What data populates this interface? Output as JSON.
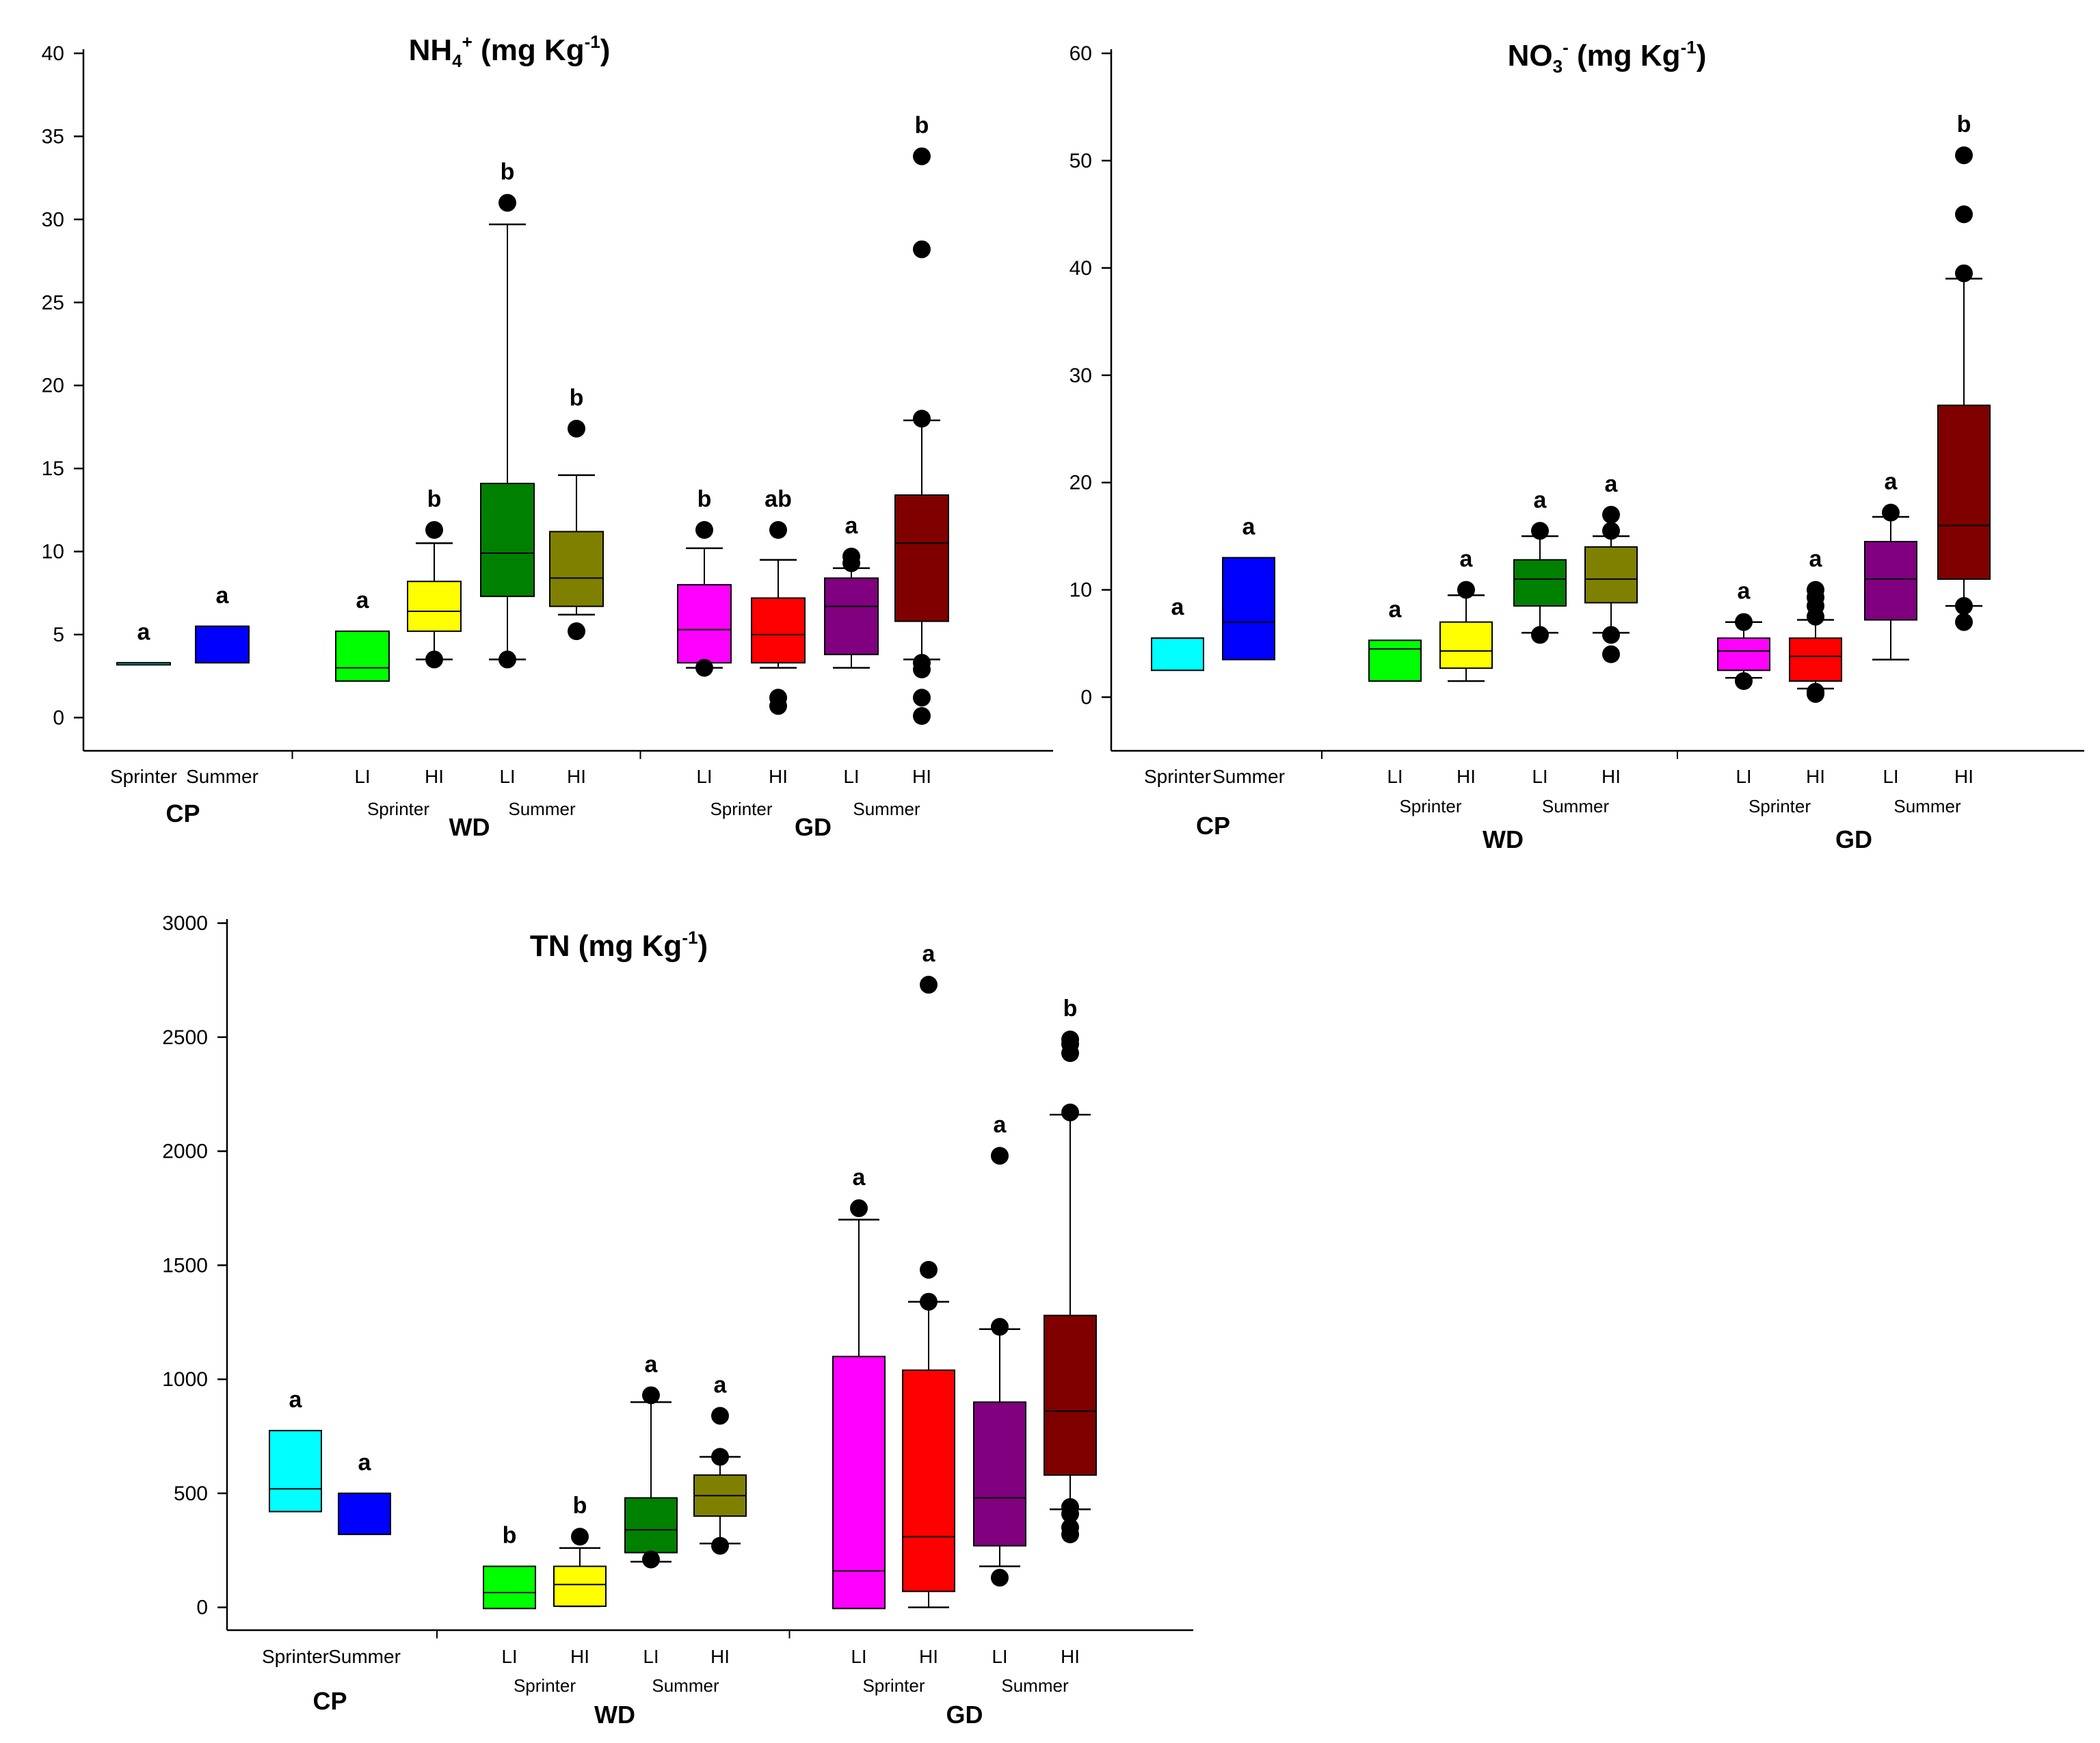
{
  "chart_data": [
    {
      "type": "box",
      "title": "NH4+ (mg Kg-1)",
      "title_parts": {
        "main": "NH",
        "sub": "4",
        "sup": "+",
        "rest": " (mg Kg",
        "unit_sup": "-1",
        "end": ")"
      },
      "ylim": [
        -2,
        40
      ],
      "yticks": [
        "0",
        "5",
        "10",
        "15",
        "20",
        "25",
        "30",
        "35",
        "40"
      ],
      "tick_values": [
        0,
        5,
        10,
        15,
        20,
        25,
        30,
        35,
        40
      ],
      "categories": [
        "Sprinter",
        "Summer",
        "LI",
        "HI",
        "LI",
        "HI",
        "LI",
        "HI",
        "LI",
        "HI"
      ],
      "season_labels": [
        {
          "text": "Sprinter",
          "after": 3
        },
        {
          "text": "Summer",
          "after": 5
        },
        {
          "text": "Sprinter",
          "after": 7
        },
        {
          "text": "Summer",
          "after": 9
        }
      ],
      "groups": [
        {
          "name": "CP",
          "from": 0,
          "to": 1
        },
        {
          "name": "WD",
          "from": 2,
          "to": 5
        },
        {
          "name": "GD",
          "from": 6,
          "to": 9
        }
      ],
      "boxes": [
        {
          "color": "#00ffff",
          "q1": 3.2,
          "median": 3.3,
          "q3": 3.3,
          "whisker_low": null,
          "whisker_high": null,
          "outliers": [],
          "sig": "a"
        },
        {
          "color": "#0000ff",
          "q1": 3.3,
          "median": 5.5,
          "q3": 5.5,
          "whisker_low": null,
          "whisker_high": null,
          "outliers": [],
          "sig": "a"
        },
        {
          "color": "#00ff00",
          "q1": 2.2,
          "median": 3.0,
          "q3": 5.2,
          "whisker_low": null,
          "whisker_high": null,
          "outliers": [],
          "sig": "a"
        },
        {
          "color": "#ffff00",
          "q1": 5.2,
          "median": 6.4,
          "q3": 8.2,
          "whisker_low": 3.5,
          "whisker_high": 10.5,
          "outliers": [
            3.5,
            11.3
          ],
          "sig": "b"
        },
        {
          "color": "#008000",
          "q1": 7.3,
          "median": 9.9,
          "q3": 14.1,
          "whisker_low": 3.5,
          "whisker_high": 29.7,
          "outliers": [
            3.5,
            31.0
          ],
          "sig": "b"
        },
        {
          "color": "#808000",
          "q1": 6.7,
          "median": 8.4,
          "q3": 11.2,
          "whisker_low": 6.2,
          "whisker_high": 14.6,
          "outliers": [
            5.2,
            17.4
          ],
          "sig": "b"
        },
        {
          "color": "#ff00ff",
          "q1": 3.3,
          "median": 5.3,
          "q3": 8.0,
          "whisker_low": 3.0,
          "whisker_high": 10.2,
          "outliers": [
            3.0,
            11.3
          ],
          "sig": "b"
        },
        {
          "color": "#ff0000",
          "q1": 3.3,
          "median": 5.0,
          "q3": 7.2,
          "whisker_low": 3.0,
          "whisker_high": 9.5,
          "outliers": [
            0.7,
            1.2,
            11.3
          ],
          "sig": "ab"
        },
        {
          "color": "#800080",
          "q1": 3.8,
          "median": 6.7,
          "q3": 8.4,
          "whisker_low": 3.0,
          "whisker_high": 9.0,
          "outliers": [
            9.3,
            9.7
          ],
          "sig": "a"
        },
        {
          "color": "#800000",
          "q1": 5.8,
          "median": 10.5,
          "q3": 13.4,
          "whisker_low": 3.5,
          "whisker_high": 17.9,
          "outliers": [
            0.1,
            1.2,
            2.9,
            3.3,
            18.0,
            28.2,
            33.8
          ],
          "sig": "b"
        }
      ]
    },
    {
      "type": "box",
      "title": "NO3- (mg Kg-1)",
      "title_parts": {
        "main": "NO",
        "sub": "3",
        "sup": "-",
        "rest": " (mg Kg",
        "unit_sup": "-1",
        "end": ")"
      },
      "ylim": [
        -5,
        60
      ],
      "yticks": [
        "0",
        "10",
        "20",
        "30",
        "40",
        "50",
        "60"
      ],
      "tick_values": [
        0,
        10,
        20,
        30,
        40,
        50,
        60
      ],
      "categories": [
        "Sprinter",
        "Summer",
        "LI",
        "HI",
        "LI",
        "HI",
        "LI",
        "HI",
        "LI",
        "HI"
      ],
      "season_labels": [
        {
          "text": "Sprinter",
          "after": 3
        },
        {
          "text": "Summer",
          "after": 5
        },
        {
          "text": "Sprinter",
          "after": 7
        },
        {
          "text": "Summer",
          "after": 9
        }
      ],
      "groups": [
        {
          "name": "CP",
          "from": 0,
          "to": 1
        },
        {
          "name": "WD",
          "from": 2,
          "to": 5
        },
        {
          "name": "GD",
          "from": 6,
          "to": 9
        }
      ],
      "boxes": [
        {
          "color": "#00ffff",
          "q1": 2.5,
          "median": 5.5,
          "q3": 5.5,
          "whisker_low": null,
          "whisker_high": null,
          "outliers": [],
          "sig": "a"
        },
        {
          "color": "#0000ff",
          "q1": 3.5,
          "median": 7.0,
          "q3": 13.0,
          "whisker_low": null,
          "whisker_high": null,
          "outliers": [],
          "sig": "a"
        },
        {
          "color": "#00ff00",
          "q1": 1.5,
          "median": 4.5,
          "q3": 5.3,
          "whisker_low": null,
          "whisker_high": null,
          "outliers": [],
          "sig": "a"
        },
        {
          "color": "#ffff00",
          "q1": 2.7,
          "median": 4.3,
          "q3": 7.0,
          "whisker_low": 1.5,
          "whisker_high": 9.5,
          "outliers": [
            10.0
          ],
          "sig": "a"
        },
        {
          "color": "#008000",
          "q1": 8.5,
          "median": 11.0,
          "q3": 12.8,
          "whisker_low": 6.0,
          "whisker_high": 15.0,
          "outliers": [
            5.8,
            15.5
          ],
          "sig": "a"
        },
        {
          "color": "#808000",
          "q1": 8.8,
          "median": 11.0,
          "q3": 14.0,
          "whisker_low": 6.0,
          "whisker_high": 15.0,
          "outliers": [
            4.0,
            5.8,
            15.5,
            17.0
          ],
          "sig": "a"
        },
        {
          "color": "#ff00ff",
          "q1": 2.5,
          "median": 4.3,
          "q3": 5.5,
          "whisker_low": 1.8,
          "whisker_high": 7.0,
          "outliers": [
            1.5,
            7.0
          ],
          "sig": "a"
        },
        {
          "color": "#ff0000",
          "q1": 1.5,
          "median": 3.8,
          "q3": 5.5,
          "whisker_low": 0.8,
          "whisker_high": 7.2,
          "outliers": [
            0.3,
            0.5,
            7.5,
            8.5,
            9.3,
            10.0
          ],
          "sig": "a"
        },
        {
          "color": "#800080",
          "q1": 7.2,
          "median": 11.0,
          "q3": 14.5,
          "whisker_low": 3.5,
          "whisker_high": 16.8,
          "outliers": [
            17.2
          ],
          "sig": "a"
        },
        {
          "color": "#800000",
          "q1": 11.0,
          "median": 16.0,
          "q3": 27.2,
          "whisker_low": 8.5,
          "whisker_high": 39.0,
          "outliers": [
            7.0,
            8.5,
            39.5,
            45.0,
            50.5
          ],
          "sig": "b"
        }
      ]
    },
    {
      "type": "box",
      "title": "TN (mg Kg-1)",
      "title_parts": {
        "main": "TN",
        "sub": "",
        "sup": "",
        "rest": "  (mg Kg",
        "unit_sup": "-1",
        "end": ")"
      },
      "ylim": [
        -100,
        3000
      ],
      "yticks": [
        "0",
        "500",
        "1000",
        "1500",
        "2000",
        "2500",
        "3000"
      ],
      "tick_values": [
        0,
        500,
        1000,
        1500,
        2000,
        2500,
        3000
      ],
      "categories": [
        "Sprinter",
        "Summer",
        "LI",
        "HI",
        "LI",
        "HI",
        "LI",
        "HI",
        "LI",
        "HI"
      ],
      "season_labels": [
        {
          "text": "Sprinter",
          "after": 3
        },
        {
          "text": "Summer",
          "after": 5
        },
        {
          "text": "Sprinter",
          "after": 7
        },
        {
          "text": "Summer",
          "after": 9
        }
      ],
      "groups": [
        {
          "name": "CP",
          "from": 0,
          "to": 1
        },
        {
          "name": "WD",
          "from": 2,
          "to": 5
        },
        {
          "name": "GD",
          "from": 6,
          "to": 9
        }
      ],
      "boxes": [
        {
          "color": "#00ffff",
          "q1": 420,
          "median": 520,
          "q3": 775,
          "whisker_low": null,
          "whisker_high": null,
          "outliers": [],
          "sig": "a"
        },
        {
          "color": "#0000ff",
          "q1": 320,
          "median": 500,
          "q3": 500,
          "whisker_low": null,
          "whisker_high": null,
          "outliers": [],
          "sig": "a"
        },
        {
          "color": "#00ff00",
          "q1": -5,
          "median": 65,
          "q3": 180,
          "whisker_low": null,
          "whisker_high": null,
          "outliers": [],
          "sig": "b"
        },
        {
          "color": "#ffff00",
          "q1": 5,
          "median": 100,
          "q3": 180,
          "whisker_low": 5,
          "whisker_high": 260,
          "outliers": [
            310
          ],
          "sig": "b"
        },
        {
          "color": "#008000",
          "q1": 240,
          "median": 340,
          "q3": 480,
          "whisker_low": 200,
          "whisker_high": 900,
          "outliers": [
            210,
            930
          ],
          "sig": "a"
        },
        {
          "color": "#808000",
          "q1": 400,
          "median": 490,
          "q3": 580,
          "whisker_low": 280,
          "whisker_high": 660,
          "outliers": [
            270,
            660,
            840
          ],
          "sig": "a"
        },
        {
          "color": "#ff00ff",
          "q1": -5,
          "median": 160,
          "q3": 1100,
          "whisker_low": null,
          "whisker_high": 1700,
          "outliers": [
            1750
          ],
          "sig": "a"
        },
        {
          "color": "#ff0000",
          "q1": 70,
          "median": 310,
          "q3": 1040,
          "whisker_low": 0,
          "whisker_high": 1340,
          "outliers": [
            1340,
            1480,
            2730
          ],
          "sig": "a"
        },
        {
          "color": "#800080",
          "q1": 270,
          "median": 480,
          "q3": 900,
          "whisker_low": 180,
          "whisker_high": 1220,
          "outliers": [
            130,
            1230,
            1980
          ],
          "sig": "a"
        },
        {
          "color": "#800000",
          "q1": 580,
          "median": 860,
          "q3": 1280,
          "whisker_low": 430,
          "whisker_high": 2160,
          "outliers": [
            320,
            350,
            410,
            440,
            2170,
            2430,
            2470,
            2490
          ],
          "sig": "b"
        }
      ]
    }
  ]
}
